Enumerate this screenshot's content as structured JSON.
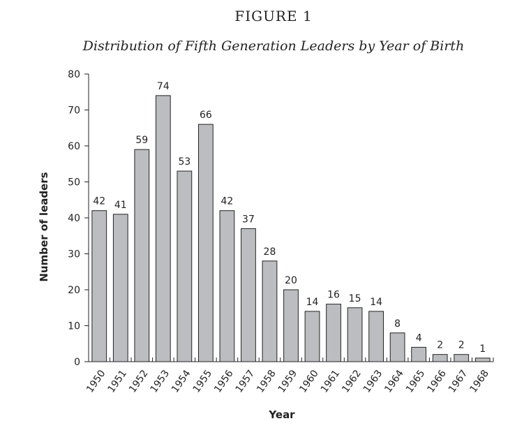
{
  "figure_label": "FIGURE 1",
  "chart_data": {
    "type": "bar",
    "title": "Distribution of Fifth Generation Leaders by Year of Birth",
    "xlabel": "Year",
    "ylabel": "Number of leaders",
    "ylim": [
      0,
      80
    ],
    "yticks": [
      0,
      10,
      20,
      30,
      40,
      50,
      60,
      70,
      80
    ],
    "categories": [
      "1950",
      "1951",
      "1952",
      "1953",
      "1954",
      "1955",
      "1956",
      "1957",
      "1958",
      "1959",
      "1960",
      "1961",
      "1962",
      "1963",
      "1964",
      "1965",
      "1966",
      "1967",
      "1968"
    ],
    "values": [
      42,
      41,
      59,
      74,
      53,
      66,
      42,
      37,
      28,
      20,
      14,
      16,
      15,
      14,
      8,
      4,
      2,
      2,
      1
    ],
    "bar_color": "#bcbdc0",
    "grid": false,
    "legend": "none"
  }
}
